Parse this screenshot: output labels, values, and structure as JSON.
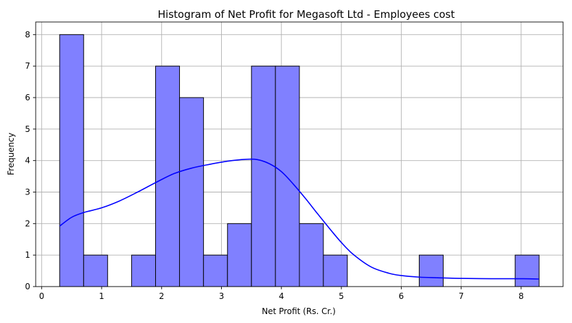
{
  "chart_data": {
    "type": "bar",
    "title": "Histogram of Net Profit for Megasoft Ltd - Employees cost",
    "xlabel": "Net Profit (Rs. Cr.)",
    "ylabel": "Frequency",
    "xlim": [
      -0.1,
      8.7
    ],
    "ylim": [
      0,
      8.4
    ],
    "xticks": [
      "0",
      "1",
      "2",
      "3",
      "4",
      "5",
      "6",
      "7",
      "8"
    ],
    "yticks": [
      "0",
      "1",
      "2",
      "3",
      "4",
      "5",
      "6",
      "7",
      "8"
    ],
    "grid": true,
    "bar_color": "#8080ff",
    "line_color": "#0000ff",
    "bins": [
      {
        "x0": 0.3,
        "x1": 0.7,
        "count": 8
      },
      {
        "x0": 0.7,
        "x1": 1.1,
        "count": 1
      },
      {
        "x0": 1.1,
        "x1": 1.5,
        "count": 0
      },
      {
        "x0": 1.5,
        "x1": 1.9,
        "count": 1
      },
      {
        "x0": 1.9,
        "x1": 2.3,
        "count": 7
      },
      {
        "x0": 2.3,
        "x1": 2.7,
        "count": 6
      },
      {
        "x0": 2.7,
        "x1": 3.1,
        "count": 1
      },
      {
        "x0": 3.1,
        "x1": 3.5,
        "count": 2
      },
      {
        "x0": 3.5,
        "x1": 3.9,
        "count": 7
      },
      {
        "x0": 3.9,
        "x1": 4.3,
        "count": 7
      },
      {
        "x0": 4.3,
        "x1": 4.7,
        "count": 2
      },
      {
        "x0": 4.7,
        "x1": 5.1,
        "count": 1
      },
      {
        "x0": 5.1,
        "x1": 5.5,
        "count": 0
      },
      {
        "x0": 5.5,
        "x1": 5.9,
        "count": 0
      },
      {
        "x0": 5.9,
        "x1": 6.3,
        "count": 0
      },
      {
        "x0": 6.3,
        "x1": 6.7,
        "count": 1
      },
      {
        "x0": 6.7,
        "x1": 7.1,
        "count": 0
      },
      {
        "x0": 7.1,
        "x1": 7.5,
        "count": 0
      },
      {
        "x0": 7.5,
        "x1": 7.9,
        "count": 0
      },
      {
        "x0": 7.9,
        "x1": 8.3,
        "count": 1
      }
    ],
    "kde": {
      "x": [
        0.3,
        0.5,
        0.7,
        1.0,
        1.3,
        1.6,
        1.9,
        2.2,
        2.5,
        2.8,
        3.1,
        3.4,
        3.6,
        3.8,
        4.0,
        4.2,
        4.4,
        4.6,
        4.8,
        5.0,
        5.2,
        5.5,
        5.8,
        6.0,
        6.3,
        6.6,
        7.0,
        7.5,
        8.0,
        8.3
      ],
      "y": [
        1.92,
        2.2,
        2.35,
        2.5,
        2.72,
        3.0,
        3.3,
        3.58,
        3.76,
        3.88,
        3.98,
        4.04,
        4.03,
        3.9,
        3.65,
        3.25,
        2.8,
        2.32,
        1.85,
        1.4,
        1.02,
        0.62,
        0.42,
        0.35,
        0.3,
        0.28,
        0.26,
        0.25,
        0.25,
        0.24
      ]
    }
  }
}
